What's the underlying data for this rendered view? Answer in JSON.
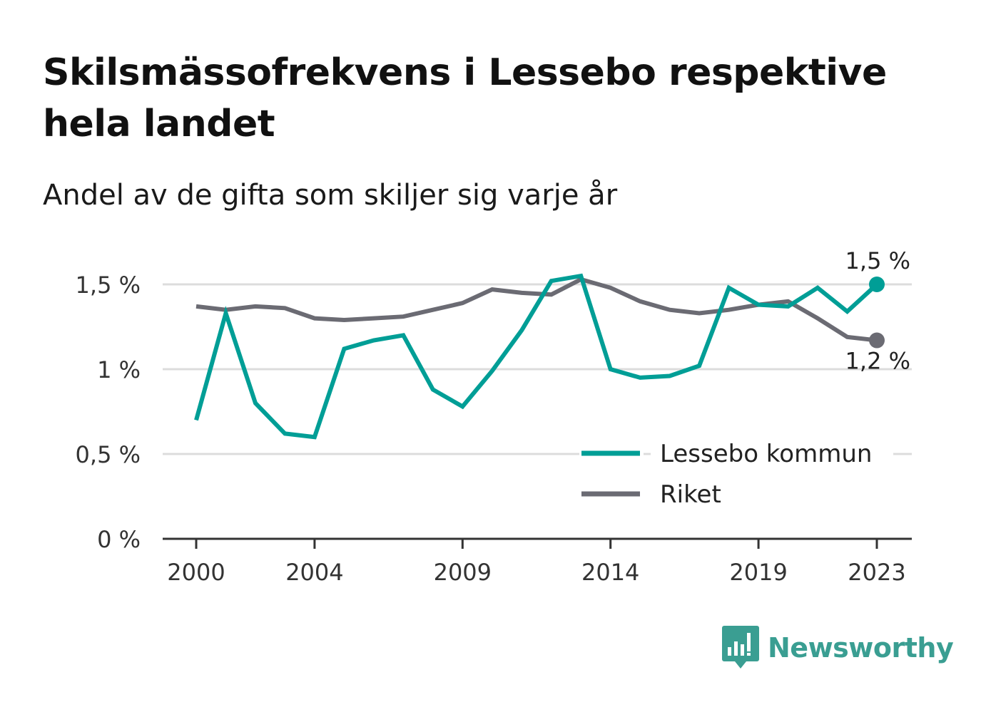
{
  "title": "Skilsmässofrekvens i Lessebo respektive hela landet",
  "subtitle": "Andel av de gifta som skiljer sig varje år",
  "brand": {
    "name": "Newsworthy",
    "icon": "newsworthy-logo-icon"
  },
  "colors": {
    "lessebo": "#009e96",
    "riket": "#6b6b73",
    "grid": "#dcdcdc",
    "axis": "#333333"
  },
  "chart_data": {
    "type": "line",
    "x": [
      2000,
      2001,
      2002,
      2003,
      2004,
      2005,
      2006,
      2007,
      2008,
      2009,
      2010,
      2011,
      2012,
      2013,
      2014,
      2015,
      2016,
      2017,
      2018,
      2019,
      2020,
      2021,
      2022,
      2023
    ],
    "x_ticks": [
      "2000",
      "2004",
      "2009",
      "2014",
      "2019",
      "2023"
    ],
    "y_ticks": [
      "0 %",
      "0,5 %",
      "1 %",
      "1,5 %"
    ],
    "ylim": [
      0,
      1.6
    ],
    "grid": true,
    "legend_position": "bottom-right",
    "series": [
      {
        "name": "Lessebo kommun",
        "values": [
          0.7,
          1.33,
          0.8,
          0.62,
          0.6,
          1.12,
          1.17,
          1.2,
          0.88,
          0.78,
          0.99,
          1.23,
          1.52,
          1.55,
          1.0,
          0.95,
          0.96,
          1.02,
          1.48,
          1.38,
          1.37,
          1.48,
          1.34,
          1.5
        ],
        "end_label": "1,5 %"
      },
      {
        "name": "Riket",
        "values": [
          1.37,
          1.35,
          1.37,
          1.36,
          1.3,
          1.29,
          1.3,
          1.31,
          1.35,
          1.39,
          1.47,
          1.45,
          1.44,
          1.53,
          1.48,
          1.4,
          1.35,
          1.33,
          1.35,
          1.38,
          1.4,
          1.3,
          1.19,
          1.17
        ],
        "end_label": "1,2 %"
      }
    ]
  }
}
